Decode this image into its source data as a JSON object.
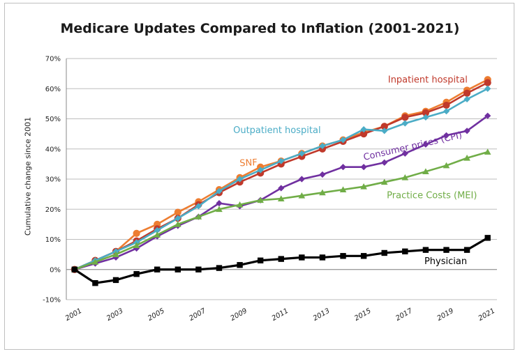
{
  "chart_data": {
    "type": "line",
    "title": "Medicare Updates Compared to Inflation (2001-2021)",
    "ylabel": "Cumulative change since 2001",
    "xlabel": "",
    "ylim": [
      -10,
      70
    ],
    "y_ticks": [
      "-10%",
      "0%",
      "10%",
      "20%",
      "30%",
      "40%",
      "50%",
      "60%",
      "70%"
    ],
    "y_tick_values": [
      -10,
      0,
      10,
      20,
      30,
      40,
      50,
      60,
      70
    ],
    "x": [
      2001,
      2002,
      2003,
      2004,
      2005,
      2006,
      2007,
      2008,
      2009,
      2010,
      2011,
      2012,
      2013,
      2014,
      2015,
      2016,
      2017,
      2018,
      2019,
      2020,
      2021
    ],
    "x_ticks": [
      "2001",
      "2003",
      "2005",
      "2007",
      "2009",
      "2011",
      "2013",
      "2015",
      "2017",
      "2019",
      "2021"
    ],
    "x_tick_values": [
      2001,
      2003,
      2005,
      2007,
      2009,
      2011,
      2013,
      2015,
      2017,
      2019,
      2021
    ],
    "grid": "horizontal",
    "series": [
      {
        "name": "SNF",
        "color": "#ed7d31",
        "marker": "circle",
        "values": [
          0,
          3,
          6,
          12,
          15,
          19,
          22.5,
          26.5,
          30.5,
          34,
          36,
          38.5,
          41,
          43,
          45.5,
          47.5,
          51,
          52.5,
          55.5,
          59.5,
          63
        ]
      },
      {
        "name": "Inpatient hospital",
        "color": "#c0392b",
        "marker": "circle",
        "values": [
          0,
          3,
          6,
          9.5,
          13.5,
          17,
          21.5,
          25.5,
          29,
          32,
          35,
          37.5,
          40,
          42.5,
          45,
          47.5,
          50.5,
          52,
          54.5,
          58.5,
          62
        ]
      },
      {
        "name": "Outpatient hospital",
        "color": "#4bacc6",
        "marker": "diamond",
        "values": [
          0,
          3,
          6,
          9,
          13,
          17,
          21,
          26,
          30,
          33,
          36,
          38.5,
          41,
          43,
          46.5,
          46,
          48.5,
          50.5,
          52.5,
          56.5,
          60
        ]
      },
      {
        "name": "Consumer prices (CPI)",
        "color": "#7030a0",
        "marker": "diamond",
        "values": [
          0,
          2,
          4,
          7,
          11,
          14.5,
          17.5,
          22,
          21,
          23,
          27,
          30,
          31.5,
          34,
          34,
          35.5,
          38.5,
          41.5,
          44.5,
          46,
          51
        ]
      },
      {
        "name": "Practice Costs (MEI)",
        "color": "#70ad47",
        "marker": "triangle",
        "values": [
          0,
          2.5,
          5,
          8,
          11.5,
          15,
          17.5,
          20,
          21.5,
          23,
          23.5,
          24.5,
          25.5,
          26.5,
          27.5,
          29,
          30.5,
          32.5,
          34.5,
          37,
          39
        ]
      },
      {
        "name": "Physician",
        "color": "#000000",
        "marker": "square",
        "values": [
          0,
          -4.5,
          -3.5,
          -1.5,
          0,
          0,
          0,
          0.5,
          1.5,
          3,
          3.5,
          4,
          4,
          4.5,
          4.5,
          5.5,
          6,
          6.5,
          6.5,
          6.5,
          10.5
        ]
      }
    ]
  }
}
